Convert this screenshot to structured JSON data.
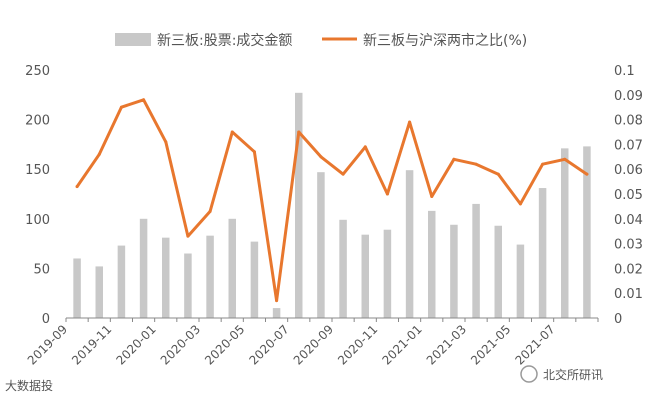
{
  "chart_data": {
    "type": "bar",
    "categories": [
      "2019-09",
      "2019-10",
      "2019-11",
      "2019-12",
      "2020-01",
      "2020-02",
      "2020-03",
      "2020-04",
      "2020-05",
      "2020-06",
      "2020-07",
      "2020-08",
      "2020-09",
      "2020-10",
      "2020-11",
      "2020-12",
      "2021-01",
      "2021-02",
      "2021-03",
      "2021-04",
      "2021-05",
      "2021-06",
      "2021-07",
      "2021-08"
    ],
    "x_tick_labels": [
      "2019-09",
      "2019-11",
      "2020-01",
      "2020-03",
      "2020-05",
      "2020-07",
      "2020-09",
      "2020-11",
      "2021-01",
      "2021-03",
      "2021-05",
      "2021-07"
    ],
    "series": [
      {
        "name": "新三板:股票:成交金额",
        "type": "bar",
        "axis": "left",
        "color": "#c8c8c8",
        "values": [
          60,
          52,
          73,
          100,
          81,
          65,
          83,
          100,
          77,
          10,
          227,
          147,
          99,
          84,
          89,
          149,
          108,
          94,
          115,
          93,
          74,
          131,
          171,
          173
        ]
      },
      {
        "name": "新三板与沪深两市之比(%)",
        "type": "line",
        "axis": "right",
        "color": "#e8772e",
        "values": [
          0.053,
          0.066,
          0.085,
          0.088,
          0.071,
          0.033,
          0.043,
          0.075,
          0.067,
          0.007,
          0.075,
          0.065,
          0.058,
          0.069,
          0.05,
          0.079,
          0.049,
          0.064,
          0.062,
          0.058,
          0.046,
          0.062,
          0.064,
          0.058
        ]
      }
    ],
    "y_left": {
      "min": 0,
      "max": 250,
      "ticks": [
        "0",
        "50",
        "100",
        "150",
        "200",
        "250"
      ]
    },
    "y_right": {
      "min": 0,
      "max": 0.1,
      "ticks": [
        "0",
        "0.01",
        "0.02",
        "0.03",
        "0.04",
        "0.05",
        "0.06",
        "0.07",
        "0.08",
        "0.09",
        "0.1"
      ]
    },
    "grid": false,
    "legend_position": "top"
  },
  "watermarks": {
    "bottom_left": "大数据投",
    "bottom_right": "北交所研讯"
  },
  "colors": {
    "bar": "#c8c8c8",
    "line": "#e8772e",
    "axis": "#888888",
    "text": "#555555"
  }
}
